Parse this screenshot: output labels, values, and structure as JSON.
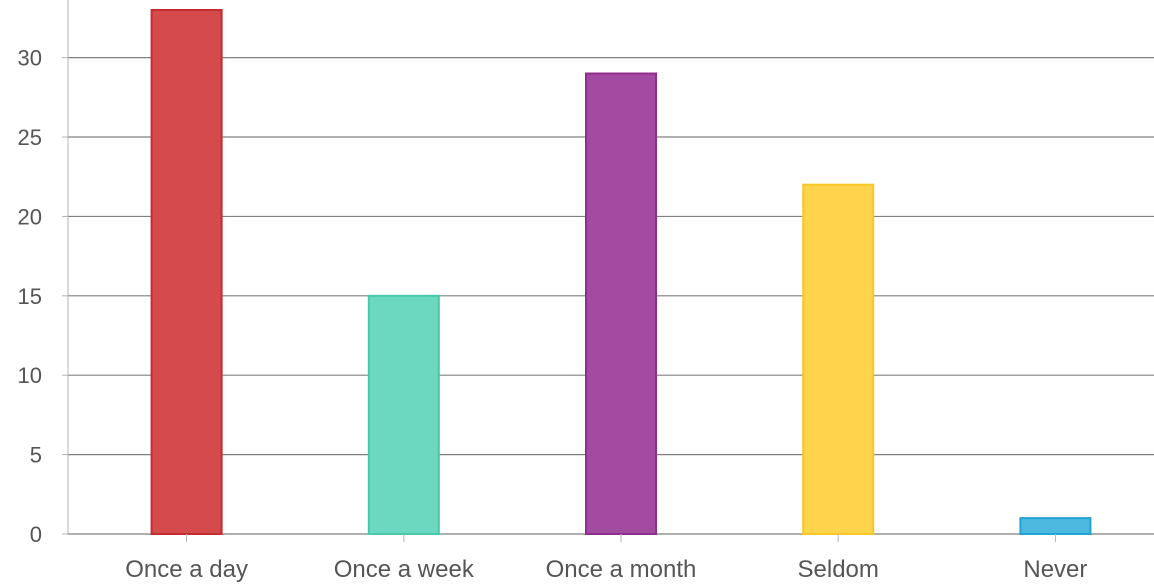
{
  "chart_data": {
    "type": "bar",
    "categories": [
      "Once a day",
      "Once a week",
      "Once a month",
      "Seldom",
      "Never"
    ],
    "values": [
      33,
      15,
      29,
      22,
      1
    ],
    "ylim": [
      0,
      33
    ],
    "yticks": [
      "0",
      "5",
      "10",
      "15",
      "20",
      "25",
      "30"
    ],
    "grid": true,
    "colors": {
      "fills": [
        "#d44a4d",
        "#6cd8c0",
        "#a24ba1",
        "#fdd44b",
        "#4db8e0"
      ],
      "strokes": [
        "#c42d30",
        "#48c9ab",
        "#8e2f8d",
        "#f7c72a",
        "#22a3d3"
      ],
      "grid": "#808080",
      "axis": "#b3b3b3",
      "text": "#555555"
    }
  }
}
